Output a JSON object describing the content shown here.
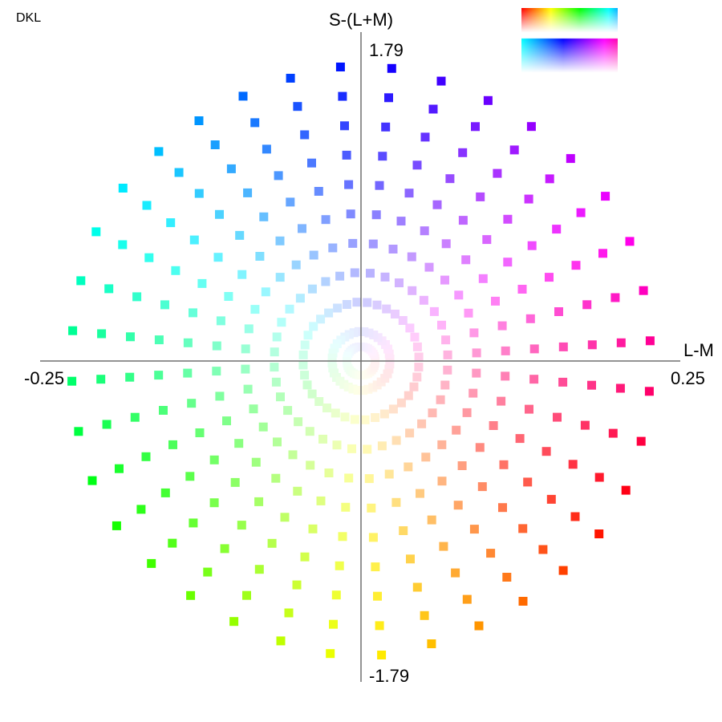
{
  "corner_label": "DKL",
  "chart_data": {
    "type": "scatter",
    "title": "",
    "xlabel": "L-M",
    "ylabel": "S-(L+M)",
    "xlim": [
      -0.25,
      0.25
    ],
    "ylim": [
      -1.79,
      1.79
    ],
    "xtick_labels": [
      "-0.25",
      "0.25"
    ],
    "ytick_labels": [
      "1.79",
      "-1.79"
    ],
    "grid": false,
    "legend": "none",
    "marker": "square",
    "rings": 10,
    "points_per_ring": 36,
    "isoluminant_plane": true,
    "colors": {
      "axis": "#000000",
      "points": "hue varies with angle; saturation increases with radius"
    }
  }
}
